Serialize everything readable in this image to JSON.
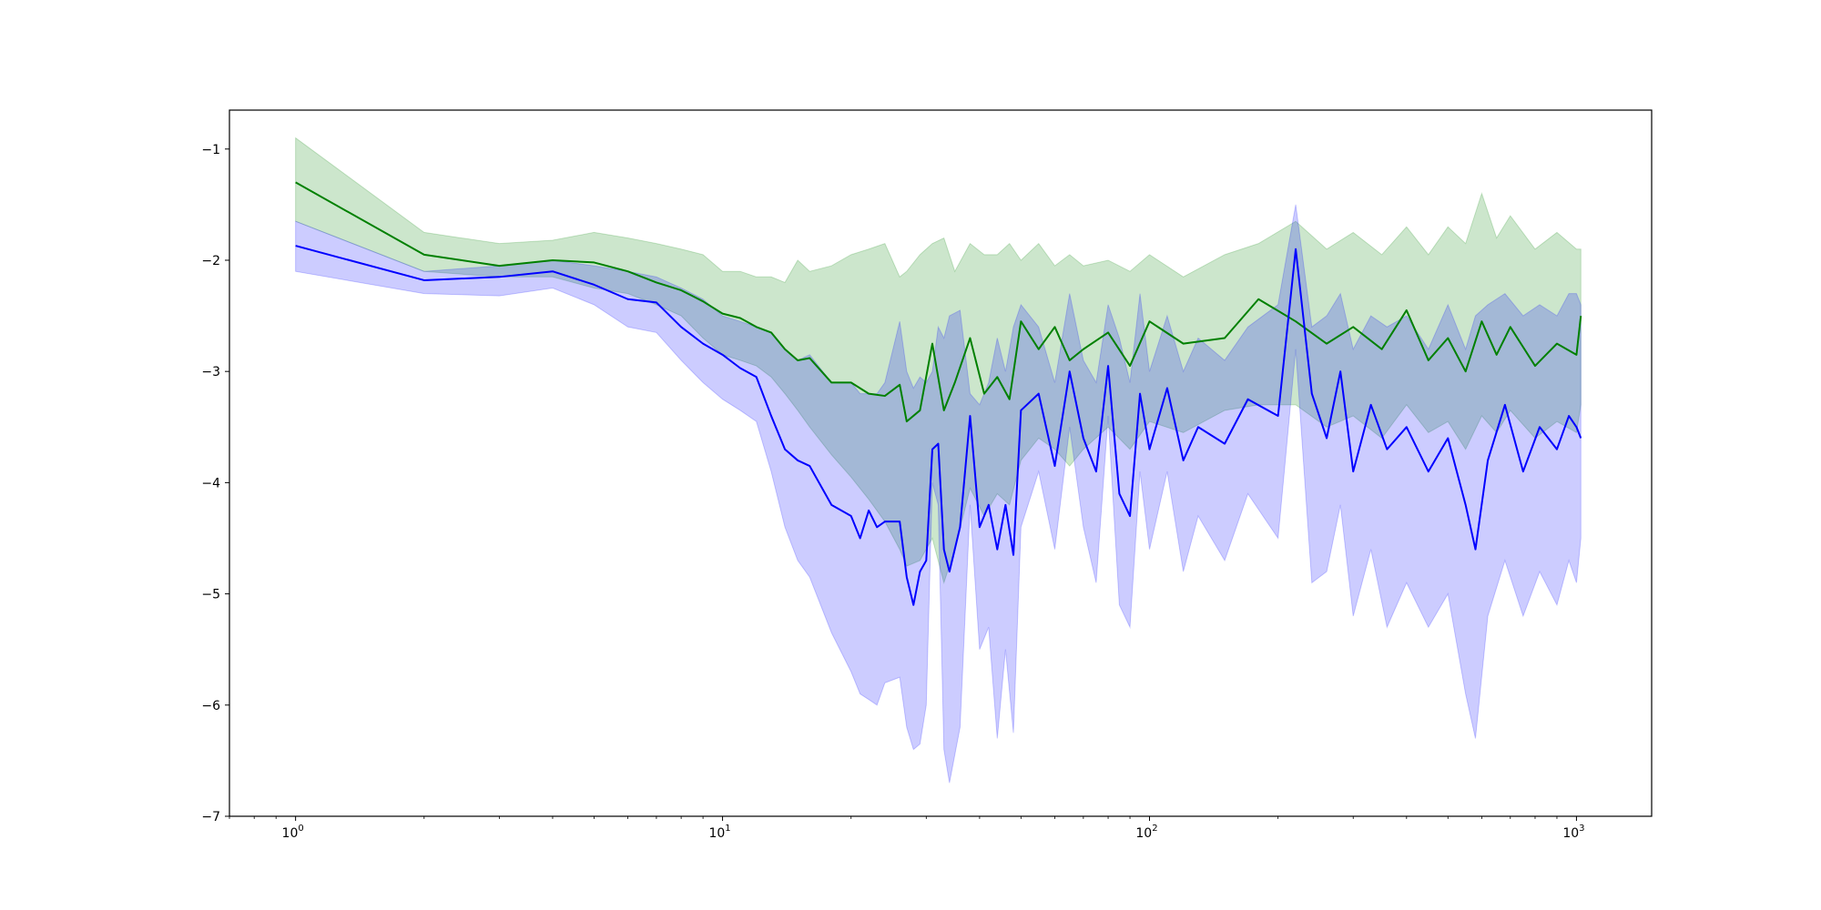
{
  "chart_data": {
    "type": "line",
    "x_scale": "log",
    "xlim": [
      0.7,
      1500
    ],
    "ylim": [
      -7,
      -0.65
    ],
    "grid": false,
    "title": "",
    "xlabel": "",
    "ylabel": "",
    "x_ticks": [
      {
        "value": 1,
        "base": "10",
        "exp": "0"
      },
      {
        "value": 10,
        "base": "10",
        "exp": "1"
      },
      {
        "value": 100,
        "base": "10",
        "exp": "2"
      },
      {
        "value": 1000,
        "base": "10",
        "exp": "3"
      }
    ],
    "y_ticks": [
      {
        "value": -1,
        "label": "−1"
      },
      {
        "value": -2,
        "label": "−2"
      },
      {
        "value": -3,
        "label": "−3"
      },
      {
        "value": -4,
        "label": "−4"
      },
      {
        "value": -5,
        "label": "−5"
      },
      {
        "value": -6,
        "label": "−6"
      },
      {
        "value": -7,
        "label": "−7"
      }
    ],
    "series": [
      {
        "color": "#008000",
        "band_color": "#008000",
        "band_opacity": 0.2,
        "x": [
          1,
          2,
          3,
          4,
          5,
          6,
          7,
          8,
          9,
          10,
          11,
          12,
          13,
          14,
          15,
          16,
          18,
          20,
          22,
          24,
          26,
          27,
          29,
          31,
          33,
          35,
          38,
          41,
          44,
          47,
          50,
          55,
          60,
          65,
          70,
          80,
          90,
          100,
          120,
          150,
          180,
          220,
          260,
          300,
          350,
          400,
          450,
          500,
          550,
          600,
          650,
          700,
          800,
          900,
          1000,
          1024
        ],
        "y": [
          -1.3,
          -1.95,
          -2.05,
          -2.0,
          -2.02,
          -2.1,
          -2.2,
          -2.27,
          -2.37,
          -2.48,
          -2.52,
          -2.6,
          -2.65,
          -2.8,
          -2.9,
          -2.88,
          -3.1,
          -3.1,
          -3.2,
          -3.22,
          -3.12,
          -3.45,
          -3.35,
          -2.75,
          -3.35,
          -3.1,
          -2.7,
          -3.2,
          -3.05,
          -3.25,
          -2.55,
          -2.8,
          -2.6,
          -2.9,
          -2.8,
          -2.65,
          -2.95,
          -2.55,
          -2.75,
          -2.7,
          -2.35,
          -2.55,
          -2.75,
          -2.6,
          -2.8,
          -2.45,
          -2.9,
          -2.7,
          -3.0,
          -2.55,
          -2.85,
          -2.6,
          -2.95,
          -2.75,
          -2.85,
          -2.5
        ],
        "upper": [
          -0.9,
          -1.75,
          -1.85,
          -1.82,
          -1.75,
          -1.8,
          -1.85,
          -1.9,
          -1.95,
          -2.1,
          -2.1,
          -2.15,
          -2.15,
          -2.2,
          -2.0,
          -2.1,
          -2.05,
          -1.95,
          -1.9,
          -1.85,
          -2.15,
          -2.1,
          -1.95,
          -1.85,
          -1.8,
          -2.1,
          -1.85,
          -1.95,
          -1.95,
          -1.85,
          -2.0,
          -1.85,
          -2.05,
          -1.95,
          -2.05,
          -2.0,
          -2.1,
          -1.95,
          -2.15,
          -1.95,
          -1.85,
          -1.65,
          -1.9,
          -1.75,
          -1.95,
          -1.7,
          -1.95,
          -1.7,
          -1.85,
          -1.4,
          -1.8,
          -1.6,
          -1.9,
          -1.75,
          -1.9,
          -1.9
        ],
        "lower": [
          -1.65,
          -2.1,
          -2.15,
          -2.15,
          -2.25,
          -2.3,
          -2.4,
          -2.5,
          -2.7,
          -2.85,
          -2.9,
          -2.95,
          -3.05,
          -3.2,
          -3.35,
          -3.5,
          -3.75,
          -3.95,
          -4.15,
          -4.35,
          -4.6,
          -4.75,
          -4.7,
          -4.5,
          -4.9,
          -4.6,
          -4.05,
          -4.3,
          -4.1,
          -4.2,
          -3.8,
          -3.6,
          -3.7,
          -3.85,
          -3.7,
          -3.5,
          -3.7,
          -3.45,
          -3.55,
          -3.35,
          -3.3,
          -3.3,
          -3.5,
          -3.4,
          -3.6,
          -3.3,
          -3.55,
          -3.45,
          -3.7,
          -3.4,
          -3.55,
          -3.35,
          -3.6,
          -3.45,
          -3.55,
          -3.3
        ]
      },
      {
        "color": "#0000ff",
        "band_color": "#0000ff",
        "band_opacity": 0.2,
        "x": [
          1,
          2,
          3,
          4,
          5,
          6,
          7,
          8,
          9,
          10,
          11,
          12,
          13,
          14,
          15,
          16,
          18,
          20,
          21,
          22,
          23,
          24,
          26,
          27,
          28,
          29,
          30,
          31,
          32,
          33,
          34,
          36,
          38,
          40,
          42,
          44,
          46,
          48,
          50,
          55,
          60,
          65,
          70,
          75,
          80,
          85,
          90,
          95,
          100,
          110,
          120,
          130,
          150,
          170,
          200,
          220,
          240,
          260,
          280,
          300,
          330,
          360,
          400,
          450,
          500,
          550,
          580,
          620,
          680,
          750,
          820,
          900,
          960,
          1000,
          1024
        ],
        "y": [
          -1.87,
          -2.18,
          -2.15,
          -2.1,
          -2.22,
          -2.35,
          -2.38,
          -2.6,
          -2.75,
          -2.85,
          -2.97,
          -3.05,
          -3.4,
          -3.7,
          -3.8,
          -3.85,
          -4.2,
          -4.3,
          -4.5,
          -4.25,
          -4.4,
          -4.35,
          -4.35,
          -4.85,
          -5.1,
          -4.8,
          -4.7,
          -3.7,
          -3.65,
          -4.6,
          -4.8,
          -4.4,
          -3.4,
          -4.4,
          -4.2,
          -4.6,
          -4.2,
          -4.65,
          -3.35,
          -3.2,
          -3.85,
          -3.0,
          -3.6,
          -3.9,
          -2.95,
          -4.1,
          -4.3,
          -3.2,
          -3.7,
          -3.15,
          -3.8,
          -3.5,
          -3.65,
          -3.25,
          -3.4,
          -1.9,
          -3.2,
          -3.6,
          -3.0,
          -3.9,
          -3.3,
          -3.7,
          -3.5,
          -3.9,
          -3.6,
          -4.2,
          -4.6,
          -3.8,
          -3.3,
          -3.9,
          -3.5,
          -3.7,
          -3.4,
          -3.5,
          -3.6
        ],
        "upper": [
          -1.65,
          -2.1,
          -2.05,
          -2.0,
          -2.05,
          -2.1,
          -2.15,
          -2.25,
          -2.35,
          -2.5,
          -2.55,
          -2.6,
          -2.65,
          -2.8,
          -2.9,
          -2.85,
          -3.1,
          -3.1,
          -3.2,
          -3.2,
          -3.2,
          -3.1,
          -2.55,
          -3.0,
          -3.15,
          -3.05,
          -3.1,
          -3.0,
          -2.6,
          -2.7,
          -2.5,
          -2.45,
          -3.2,
          -3.3,
          -3.1,
          -2.7,
          -3.0,
          -2.6,
          -2.4,
          -2.6,
          -3.1,
          -2.3,
          -2.9,
          -3.1,
          -2.4,
          -2.7,
          -3.1,
          -2.3,
          -3.0,
          -2.5,
          -3.0,
          -2.7,
          -2.9,
          -2.6,
          -2.4,
          -1.5,
          -2.6,
          -2.5,
          -2.3,
          -2.8,
          -2.5,
          -2.6,
          -2.5,
          -2.8,
          -2.4,
          -2.8,
          -2.5,
          -2.4,
          -2.3,
          -2.5,
          -2.4,
          -2.5,
          -2.3,
          -2.3,
          -2.4
        ],
        "lower": [
          -2.1,
          -2.3,
          -2.32,
          -2.25,
          -2.4,
          -2.6,
          -2.65,
          -2.9,
          -3.1,
          -3.25,
          -3.35,
          -3.45,
          -3.9,
          -4.4,
          -4.7,
          -4.85,
          -5.35,
          -5.7,
          -5.9,
          -5.95,
          -6.0,
          -5.8,
          -5.75,
          -6.2,
          -6.4,
          -6.35,
          -6.0,
          -4.0,
          -4.2,
          -6.4,
          -6.7,
          -6.2,
          -4.2,
          -5.5,
          -5.3,
          -6.3,
          -5.5,
          -6.25,
          -4.4,
          -3.9,
          -4.6,
          -3.5,
          -4.4,
          -4.9,
          -3.4,
          -5.1,
          -5.3,
          -3.9,
          -4.6,
          -3.9,
          -4.8,
          -4.3,
          -4.7,
          -4.1,
          -4.5,
          -2.8,
          -4.9,
          -4.8,
          -4.2,
          -5.2,
          -4.6,
          -5.3,
          -4.9,
          -5.3,
          -5.0,
          -5.9,
          -6.3,
          -5.2,
          -4.7,
          -5.2,
          -4.8,
          -5.1,
          -4.7,
          -4.9,
          -4.5
        ]
      }
    ]
  }
}
